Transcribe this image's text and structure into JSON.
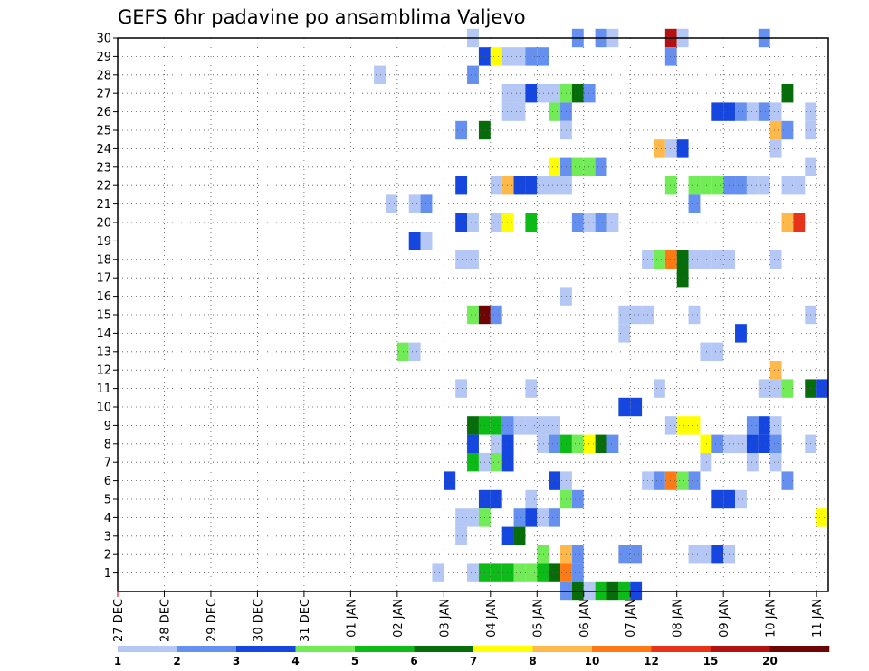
{
  "chart_data": {
    "type": "heatmap",
    "title": "GEFS 6hr padavine po ansamblima Valjevo",
    "xlabel": "",
    "ylabel": "",
    "x_tick_labels": [
      "27 DEC",
      "28 DEC",
      "29 DEC",
      "30 DEC",
      "31 DEC",
      "01 JAN",
      "02 JAN",
      "03 JAN",
      "04 JAN",
      "05 JAN",
      "06 JAN",
      "07 JAN",
      "08 JAN",
      "09 JAN",
      "10 JAN",
      "11 JAN"
    ],
    "x_range_days": [
      0,
      15.25
    ],
    "y_tick_labels": [
      "1",
      "2",
      "3",
      "4",
      "5",
      "6",
      "7",
      "8",
      "9",
      "10",
      "11",
      "12",
      "13",
      "14",
      "15",
      "16",
      "17",
      "18",
      "19",
      "20",
      "21",
      "22",
      "23",
      "24",
      "25",
      "26",
      "27",
      "28",
      "29",
      "30"
    ],
    "y_range": [
      0,
      30
    ],
    "grid": true,
    "legend": {
      "placement": "bottom",
      "colors": [
        "#b4c7f5",
        "#6690ef",
        "#1546e0",
        "#71ec56",
        "#0dbb18",
        "#066d0a",
        "#ffff00",
        "#ffb84a",
        "#ff7a12",
        "#e8331b",
        "#b31212",
        "#6e0505"
      ],
      "labels": [
        "1",
        "2",
        "3",
        "4",
        "5",
        "6",
        "7",
        "8",
        "10",
        "12",
        "15",
        "20"
      ]
    },
    "cells": [
      [
        30,
        7.5,
        0
      ],
      [
        30,
        9.75,
        1
      ],
      [
        30,
        10.25,
        1
      ],
      [
        30,
        10.5,
        0
      ],
      [
        30,
        11.75,
        10
      ],
      [
        30,
        12,
        0
      ],
      [
        30,
        13.75,
        1
      ],
      [
        29,
        7.75,
        2
      ],
      [
        29,
        8,
        6
      ],
      [
        29,
        8.25,
        0
      ],
      [
        29,
        8.5,
        0
      ],
      [
        29,
        8.75,
        1
      ],
      [
        29,
        9,
        1
      ],
      [
        29,
        11.75,
        1
      ],
      [
        28,
        5.5,
        0
      ],
      [
        28,
        7.5,
        1
      ],
      [
        27,
        8.25,
        0
      ],
      [
        27,
        8.5,
        0
      ],
      [
        27,
        8.75,
        2
      ],
      [
        27,
        9,
        0
      ],
      [
        27,
        9.25,
        0
      ],
      [
        27,
        9.5,
        3
      ],
      [
        27,
        9.75,
        5
      ],
      [
        27,
        10,
        1
      ],
      [
        27,
        14.25,
        5
      ],
      [
        26,
        8.25,
        0
      ],
      [
        26,
        8.5,
        0
      ],
      [
        26,
        9.25,
        3
      ],
      [
        26,
        9.5,
        1
      ],
      [
        26,
        12.75,
        2
      ],
      [
        26,
        13,
        2
      ],
      [
        26,
        13.25,
        1
      ],
      [
        26,
        13.5,
        0
      ],
      [
        26,
        13.75,
        1
      ],
      [
        26,
        14,
        0
      ],
      [
        26,
        14.75,
        0
      ],
      [
        25,
        7.25,
        1
      ],
      [
        25,
        7.75,
        5
      ],
      [
        25,
        9.5,
        0
      ],
      [
        25,
        14,
        7
      ],
      [
        25,
        14.25,
        1
      ],
      [
        25,
        14.75,
        0
      ],
      [
        24,
        11.5,
        7
      ],
      [
        24,
        11.75,
        0
      ],
      [
        24,
        12,
        2
      ],
      [
        24,
        14,
        0
      ],
      [
        23,
        9.25,
        6
      ],
      [
        23,
        9.5,
        1
      ],
      [
        23,
        9.75,
        3
      ],
      [
        23,
        10,
        3
      ],
      [
        23,
        10.25,
        1
      ],
      [
        23,
        14.75,
        0
      ],
      [
        22,
        7.25,
        2
      ],
      [
        22,
        8,
        0
      ],
      [
        22,
        8.25,
        7
      ],
      [
        22,
        8.5,
        2
      ],
      [
        22,
        8.75,
        2
      ],
      [
        22,
        9,
        0
      ],
      [
        22,
        9.25,
        0
      ],
      [
        22,
        9.5,
        0
      ],
      [
        22,
        11.75,
        3
      ],
      [
        22,
        12.25,
        3
      ],
      [
        22,
        12.5,
        3
      ],
      [
        22,
        12.75,
        3
      ],
      [
        22,
        13,
        1
      ],
      [
        22,
        13.25,
        1
      ],
      [
        22,
        13.5,
        0
      ],
      [
        22,
        13.75,
        0
      ],
      [
        22,
        14.25,
        0
      ],
      [
        22,
        14.5,
        0
      ],
      [
        21,
        5.75,
        0
      ],
      [
        21,
        6.25,
        0
      ],
      [
        21,
        6.5,
        1
      ],
      [
        21,
        12.25,
        1
      ],
      [
        20,
        7.25,
        2
      ],
      [
        20,
        7.5,
        0
      ],
      [
        20,
        8,
        0
      ],
      [
        20,
        8.25,
        6
      ],
      [
        20,
        8.75,
        4
      ],
      [
        20,
        9.75,
        1
      ],
      [
        20,
        10,
        0
      ],
      [
        20,
        10.25,
        1
      ],
      [
        20,
        10.5,
        0
      ],
      [
        20,
        14.25,
        7
      ],
      [
        20,
        14.5,
        9
      ],
      [
        19,
        6.25,
        2
      ],
      [
        19,
        6.5,
        0
      ],
      [
        18,
        7.25,
        0
      ],
      [
        18,
        7.5,
        0
      ],
      [
        18,
        11.25,
        0
      ],
      [
        18,
        11.5,
        3
      ],
      [
        18,
        11.75,
        8
      ],
      [
        18,
        12,
        5
      ],
      [
        18,
        12.25,
        0
      ],
      [
        18,
        12.5,
        0
      ],
      [
        18,
        12.75,
        0
      ],
      [
        18,
        13,
        0
      ],
      [
        18,
        14,
        0
      ],
      [
        17,
        12,
        5
      ],
      [
        16,
        9.5,
        0
      ],
      [
        15,
        7.5,
        3
      ],
      [
        15,
        7.75,
        11
      ],
      [
        15,
        8,
        1
      ],
      [
        15,
        10.75,
        0
      ],
      [
        15,
        11,
        0
      ],
      [
        15,
        11.25,
        0
      ],
      [
        15,
        12.25,
        0
      ],
      [
        15,
        14.75,
        0
      ],
      [
        14,
        10.75,
        0
      ],
      [
        14,
        13.25,
        2
      ],
      [
        13,
        6,
        3
      ],
      [
        13,
        6.25,
        0
      ],
      [
        13,
        12.5,
        0
      ],
      [
        13,
        12.75,
        0
      ],
      [
        12,
        14,
        7
      ],
      [
        11,
        7.25,
        0
      ],
      [
        11,
        8.75,
        0
      ],
      [
        11,
        11.5,
        0
      ],
      [
        11,
        13.75,
        0
      ],
      [
        11,
        14,
        0
      ],
      [
        11,
        14.25,
        3
      ],
      [
        11,
        14.75,
        5
      ],
      [
        11,
        15,
        2
      ],
      [
        10,
        10.75,
        2
      ],
      [
        10,
        11,
        2
      ],
      [
        9,
        7.5,
        5
      ],
      [
        9,
        7.75,
        4
      ],
      [
        9,
        8,
        4
      ],
      [
        9,
        8.25,
        1
      ],
      [
        9,
        8.5,
        0
      ],
      [
        9,
        8.75,
        0
      ],
      [
        9,
        9,
        0
      ],
      [
        9,
        9.25,
        0
      ],
      [
        9,
        11.75,
        0
      ],
      [
        9,
        12,
        6
      ],
      [
        9,
        12.25,
        6
      ],
      [
        9,
        13.5,
        1
      ],
      [
        9,
        13.75,
        2
      ],
      [
        9,
        14,
        0
      ],
      [
        8,
        7.5,
        2
      ],
      [
        8,
        8,
        0
      ],
      [
        8,
        8.25,
        2
      ],
      [
        8,
        9,
        0
      ],
      [
        8,
        9.25,
        1
      ],
      [
        8,
        9.5,
        4
      ],
      [
        8,
        9.75,
        3
      ],
      [
        8,
        10,
        6
      ],
      [
        8,
        10.25,
        5
      ],
      [
        8,
        10.5,
        1
      ],
      [
        8,
        12.5,
        6
      ],
      [
        8,
        12.75,
        1
      ],
      [
        8,
        13,
        0
      ],
      [
        8,
        13.25,
        0
      ],
      [
        8,
        13.5,
        2
      ],
      [
        8,
        13.75,
        2
      ],
      [
        8,
        14,
        1
      ],
      [
        8,
        14.75,
        0
      ],
      [
        7,
        7.5,
        4
      ],
      [
        7,
        7.75,
        0
      ],
      [
        7,
        8,
        3
      ],
      [
        7,
        8.25,
        2
      ],
      [
        7,
        12.5,
        0
      ],
      [
        7,
        13.5,
        0
      ],
      [
        7,
        14,
        0
      ],
      [
        6,
        7,
        2
      ],
      [
        6,
        9.25,
        2
      ],
      [
        6,
        9.5,
        0
      ],
      [
        6,
        11.25,
        0
      ],
      [
        6,
        11.5,
        1
      ],
      [
        6,
        11.75,
        8
      ],
      [
        6,
        12,
        3
      ],
      [
        6,
        12.25,
        1
      ],
      [
        6,
        14.25,
        1
      ],
      [
        5,
        7.75,
        2
      ],
      [
        5,
        8,
        2
      ],
      [
        5,
        8.75,
        0
      ],
      [
        5,
        9.5,
        3
      ],
      [
        5,
        9.75,
        1
      ],
      [
        5,
        12.75,
        2
      ],
      [
        5,
        13,
        2
      ],
      [
        5,
        13.25,
        0
      ],
      [
        4,
        7.25,
        0
      ],
      [
        4,
        7.5,
        0
      ],
      [
        4,
        7.75,
        3
      ],
      [
        4,
        8.5,
        1
      ],
      [
        4,
        8.75,
        2
      ],
      [
        4,
        9,
        0
      ],
      [
        4,
        9.25,
        1
      ],
      [
        4,
        15,
        6
      ],
      [
        3,
        7.25,
        0
      ],
      [
        3,
        8.25,
        2
      ],
      [
        3,
        8.5,
        5
      ],
      [
        2,
        9,
        3
      ],
      [
        2,
        9.5,
        7
      ],
      [
        2,
        9.75,
        1
      ],
      [
        2,
        10.75,
        1
      ],
      [
        2,
        11,
        1
      ],
      [
        2,
        12.25,
        0
      ],
      [
        2,
        12.5,
        0
      ],
      [
        2,
        12.75,
        2
      ],
      [
        2,
        13,
        0
      ],
      [
        1,
        6.75,
        0
      ],
      [
        1,
        7.5,
        0
      ],
      [
        1,
        7.75,
        4
      ],
      [
        1,
        8,
        4
      ],
      [
        1,
        8.25,
        4
      ],
      [
        1,
        8.5,
        3
      ],
      [
        1,
        8.75,
        3
      ],
      [
        1,
        9,
        4
      ],
      [
        1,
        9.25,
        5
      ],
      [
        1,
        9.5,
        8
      ],
      [
        1,
        9.75,
        1
      ],
      [
        0,
        9.5,
        1
      ],
      [
        0,
        9.75,
        5
      ],
      [
        0,
        10,
        0
      ],
      [
        0,
        10.25,
        4
      ],
      [
        0,
        10.5,
        5
      ],
      [
        0,
        10.75,
        4
      ],
      [
        0,
        11,
        2
      ]
    ]
  }
}
